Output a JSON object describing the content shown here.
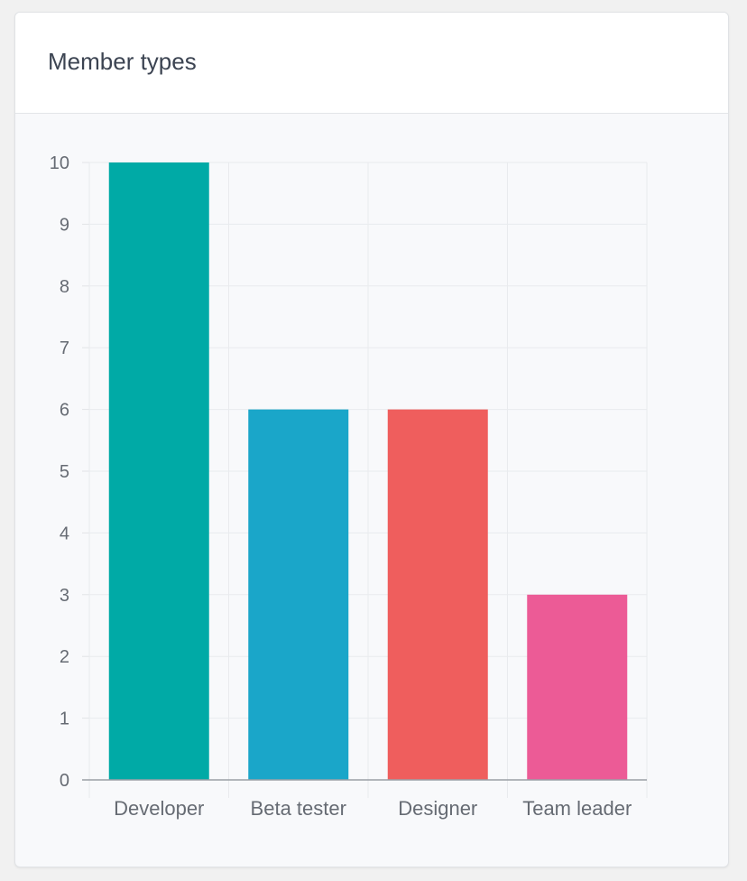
{
  "card": {
    "title": "Member types"
  },
  "chart_data": {
    "type": "bar",
    "title": "",
    "xlabel": "",
    "ylabel": "",
    "categories": [
      "Developer",
      "Beta tester",
      "Designer",
      "Team leader"
    ],
    "values": [
      10,
      6,
      6,
      3
    ],
    "colors": [
      "#00aaa6",
      "#1aa6c9",
      "#ef5e5d",
      "#ec5b96"
    ],
    "ylim": [
      0,
      10
    ],
    "yticks": [
      "0",
      "1",
      "2",
      "3",
      "4",
      "5",
      "6",
      "7",
      "8",
      "9",
      "10"
    ],
    "grid": true,
    "legend": "none"
  }
}
